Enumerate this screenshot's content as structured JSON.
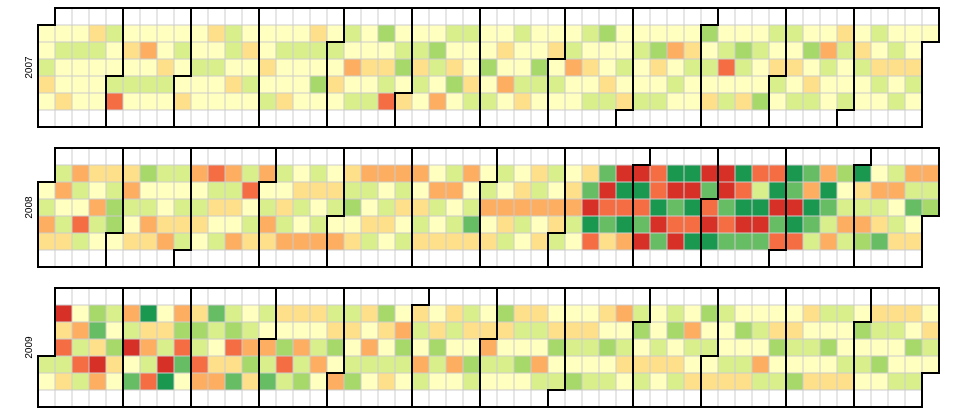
{
  "colors": [
    "#a50026",
    "#d73027",
    "#f46d43",
    "#fdae61",
    "#fee08b",
    "#ffffbf",
    "#d9ef8b",
    "#a6d96a",
    "#66bd63",
    "#1a9850",
    "#006837"
  ],
  "years": [
    {
      "label": "2007",
      "values": [
        5,
        5,
        6,
        4,
        5,
        5,
        6,
        5,
        5,
        4,
        5,
        6,
        5,
        5,
        5,
        4,
        6,
        5,
        5,
        5,
        6,
        5,
        5,
        6,
        2,
        5,
        4,
        5,
        6,
        5,
        5,
        3,
        5,
        6,
        5,
        5,
        5,
        4,
        6,
        5,
        5,
        6,
        5,
        5,
        4,
        5,
        5,
        6,
        5,
        5,
        4,
        5,
        6,
        5,
        5,
        6,
        6,
        5,
        4,
        5,
        5,
        4,
        5,
        6,
        5,
        5,
        5,
        4,
        5,
        6,
        5,
        6,
        5,
        5,
        4,
        5,
        6,
        5,
        5,
        5,
        4,
        6,
        5,
        7,
        5,
        5,
        6,
        5,
        4,
        5,
        6,
        5,
        3,
        5,
        6,
        5,
        5,
        4,
        5,
        6,
        7,
        5,
        4,
        6,
        2,
        5,
        6,
        7,
        5,
        4,
        5,
        6,
        4,
        6,
        5,
        5,
        7,
        6,
        5,
        3,
        6,
        5,
        4,
        7,
        5,
        6,
        5,
        5,
        4,
        6,
        5,
        5,
        7,
        5,
        6,
        5,
        4,
        5,
        3,
        5,
        6,
        5,
        5,
        6,
        4,
        5,
        5,
        7,
        6,
        5,
        5,
        4,
        5,
        6,
        5,
        5,
        6,
        3,
        5,
        5,
        6,
        5,
        4,
        5,
        6,
        7,
        5,
        5,
        4,
        6,
        5,
        5,
        6,
        5,
        4,
        5,
        6,
        5,
        5,
        6,
        5,
        7,
        4,
        5,
        6,
        5,
        3,
        5,
        6,
        5,
        5,
        4,
        6,
        5,
        5,
        7,
        5,
        6,
        5,
        4,
        5,
        6,
        2,
        5,
        6,
        5,
        7,
        6,
        5,
        4,
        5,
        6,
        5,
        5,
        7,
        6,
        5,
        4,
        6,
        5,
        6,
        5,
        4,
        5,
        6,
        5,
        7,
        5,
        4,
        6,
        5,
        3,
        6,
        5,
        5,
        4,
        6,
        5,
        5,
        6,
        5,
        4,
        6,
        5,
        5,
        6,
        5,
        4,
        6,
        5,
        5,
        6,
        4,
        5,
        6,
        5,
        5,
        4,
        6,
        5,
        5
      ]
    },
    {
      "label": "2008",
      "values": [
        5,
        6,
        3,
        4,
        6,
        3,
        5,
        6,
        4,
        3,
        6,
        5,
        2,
        6,
        4,
        5,
        3,
        6,
        5,
        4,
        6,
        7,
        7,
        5,
        4,
        3,
        6,
        5,
        4,
        7,
        5,
        6,
        3,
        4,
        6,
        5,
        5,
        4,
        3,
        6,
        5,
        6,
        4,
        6,
        3,
        5,
        6,
        4,
        5,
        2,
        6,
        4,
        5,
        6,
        3,
        6,
        4,
        5,
        3,
        6,
        2,
        5,
        6,
        4,
        3,
        5,
        6,
        3,
        4,
        6,
        5,
        4,
        6,
        3,
        5,
        4,
        6,
        5,
        3,
        6,
        4,
        5,
        6,
        3,
        5,
        4,
        6,
        5,
        3,
        4,
        6,
        7,
        5,
        4,
        3,
        6,
        5,
        4,
        6,
        3,
        5,
        6,
        4,
        5,
        3,
        6,
        4,
        5,
        6,
        3,
        5,
        4,
        6,
        4,
        5,
        3,
        6,
        5,
        4,
        6,
        3,
        5,
        6,
        4,
        3,
        5,
        6,
        8,
        4,
        5,
        6,
        3,
        5,
        4,
        6,
        5,
        3,
        4,
        6,
        5,
        4,
        3,
        6,
        5,
        4,
        6,
        3,
        5,
        4,
        6,
        5,
        3,
        4,
        6,
        5,
        4,
        3,
        6,
        5,
        4,
        8,
        1,
        9,
        2,
        8,
        1,
        2,
        8,
        4,
        1,
        9,
        2,
        9,
        3,
        1,
        9,
        2,
        8,
        1,
        2,
        2,
        9,
        1,
        8,
        9,
        1,
        8,
        2,
        1,
        9,
        1,
        9,
        2,
        9,
        1,
        8,
        2,
        1,
        9,
        1,
        1,
        8,
        2,
        8,
        9,
        2,
        9,
        1,
        8,
        2,
        6,
        9,
        1,
        8,
        2,
        9,
        1,
        8,
        2,
        9,
        8,
        1,
        9,
        2,
        8,
        3,
        9,
        8,
        6,
        3,
        9,
        8,
        6,
        3,
        7,
        5,
        6,
        3,
        6,
        9,
        4,
        6,
        3,
        7,
        5,
        3,
        6,
        4,
        8,
        6,
        3,
        5,
        6,
        4,
        3,
        6,
        8,
        5,
        4,
        3,
        6,
        7
      ]
    },
    {
      "label": "2009",
      "values": [
        6,
        5,
        1,
        4,
        2,
        6,
        4,
        5,
        3,
        6,
        2,
        6,
        7,
        8,
        4,
        1,
        3,
        6,
        5,
        7,
        4,
        5,
        3,
        6,
        1,
        5,
        8,
        9,
        4,
        3,
        6,
        2,
        5,
        4,
        6,
        1,
        9,
        3,
        7,
        2,
        8,
        5,
        4,
        7,
        6,
        2,
        3,
        8,
        6,
        5,
        4,
        3,
        6,
        7,
        2,
        4,
        8,
        5,
        6,
        3,
        7,
        4,
        6,
        5,
        3,
        6,
        8,
        4,
        5,
        7,
        2,
        6,
        4,
        5,
        3,
        6,
        7,
        4,
        5,
        6,
        3,
        5,
        6,
        4,
        7,
        5,
        3,
        6,
        4,
        5,
        6,
        7,
        4,
        5,
        3,
        6,
        5,
        7,
        4,
        5,
        6,
        4,
        5,
        3,
        7,
        6,
        5,
        4,
        6,
        5,
        3,
        6,
        5,
        4,
        7,
        6,
        5,
        4,
        6,
        5,
        3,
        5,
        6,
        4,
        5,
        7,
        6,
        5,
        4,
        3,
        6,
        5,
        7,
        4,
        5,
        6,
        5,
        4,
        6,
        5,
        7,
        5,
        4,
        6,
        5,
        3,
        6,
        5,
        4,
        7,
        5,
        6,
        5,
        4,
        6,
        5,
        7,
        5,
        4,
        6,
        5,
        6,
        4,
        5,
        7,
        5,
        6,
        3,
        5,
        6,
        4,
        5,
        6,
        7,
        5,
        4,
        6,
        5,
        5,
        6,
        4,
        5,
        6,
        7,
        5,
        4,
        6,
        5,
        3,
        6,
        5,
        4,
        7,
        5,
        6,
        5,
        4,
        6,
        5,
        5,
        6,
        4,
        5,
        7,
        5,
        6,
        4,
        5,
        6,
        5,
        3,
        6,
        5,
        4,
        7,
        5,
        6,
        5,
        4,
        6,
        5,
        7,
        4,
        5,
        6,
        5,
        4,
        6,
        5,
        7,
        5,
        4,
        6,
        5,
        5,
        6,
        4,
        5,
        7,
        5,
        6,
        5,
        4,
        6,
        5,
        7,
        5,
        4,
        6,
        5,
        5,
        6,
        4,
        5,
        7,
        5,
        6,
        5,
        4,
        6,
        5
      ]
    }
  ]
}
